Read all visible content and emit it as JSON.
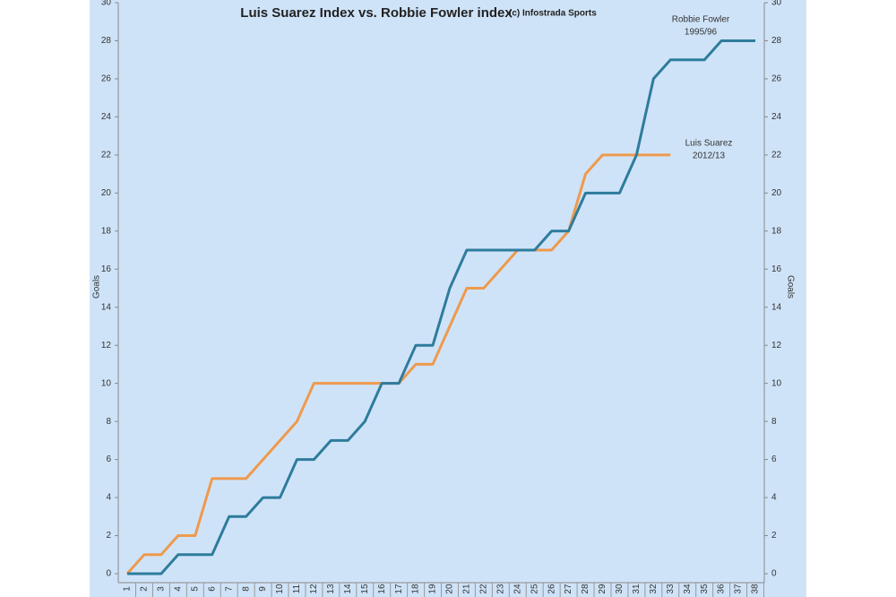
{
  "chart_data": {
    "type": "line",
    "title": "Luis Suarez Index vs. Robbie Fowler index",
    "subtitle": "(c) Infostrada Sports",
    "y_label": "Goals",
    "y2_label": "Goals",
    "categories": [
      1,
      2,
      3,
      4,
      5,
      6,
      7,
      8,
      9,
      10,
      11,
      12,
      13,
      14,
      15,
      16,
      17,
      18,
      19,
      20,
      21,
      22,
      23,
      24,
      25,
      26,
      27,
      28,
      29,
      30,
      31,
      32,
      33,
      34,
      35,
      36,
      37,
      38
    ],
    "series": [
      {
        "name": "Robbie Fowler",
        "color": "#2e7c9c",
        "values": [
          0,
          0,
          0,
          1,
          1,
          1,
          3,
          3,
          4,
          4,
          6,
          6,
          7,
          7,
          8,
          10,
          10,
          12,
          12,
          15,
          17,
          17,
          17,
          17,
          17,
          18,
          18,
          20,
          20,
          20,
          22,
          26,
          27,
          27,
          27,
          28,
          28,
          28
        ]
      },
      {
        "name": "Luis Suarez",
        "color": "#ee9a4d",
        "values": [
          0,
          1,
          1,
          2,
          2,
          5,
          5,
          5,
          6,
          7,
          8,
          10,
          10,
          10,
          10,
          10,
          10,
          11,
          11,
          13,
          15,
          15,
          16,
          17,
          17,
          17,
          18,
          21,
          22,
          22,
          22,
          22,
          22,
          null,
          null,
          null,
          null,
          null
        ]
      }
    ],
    "annotations": [
      [
        "Robbie Fowler",
        "1995/96"
      ],
      [
        "Luis Suarez",
        "2012/13"
      ]
    ],
    "ylim": [
      0,
      30
    ],
    "yticks": [
      0,
      2,
      4,
      6,
      8,
      10,
      12,
      14,
      16,
      18,
      20,
      22,
      24,
      26,
      28,
      30
    ],
    "y2lim": [
      0,
      30
    ],
    "y2ticks": [
      0,
      2,
      4,
      6,
      8,
      10,
      12,
      14,
      16,
      18,
      20,
      22,
      24,
      26,
      28,
      30
    ]
  }
}
